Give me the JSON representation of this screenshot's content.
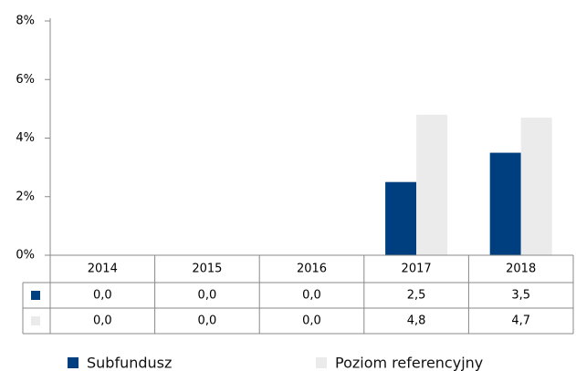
{
  "chart_data": {
    "type": "bar",
    "categories": [
      "2014",
      "2015",
      "2016",
      "2017",
      "2018"
    ],
    "series": [
      {
        "name": "Subfundusz",
        "color": "#003f7f",
        "values": [
          0,
          0,
          0,
          2.5,
          3.5
        ],
        "value_labels": [
          "0,0",
          "0,0",
          "0,0",
          "2,5",
          "3,5"
        ]
      },
      {
        "name": "Poziom referencyjny",
        "color": "#ebebeb",
        "values": [
          0,
          0,
          0,
          4.8,
          4.7
        ],
        "value_labels": [
          "0,0",
          "0,0",
          "0,0",
          "4,8",
          "4,7"
        ]
      }
    ],
    "ylim": [
      0,
      8
    ],
    "yticks": [
      {
        "value": 0,
        "label": "0%"
      },
      {
        "value": 2,
        "label": "2%"
      },
      {
        "value": 4,
        "label": "4%"
      },
      {
        "value": 6,
        "label": "6%"
      },
      {
        "value": 8,
        "label": "8%"
      }
    ]
  }
}
